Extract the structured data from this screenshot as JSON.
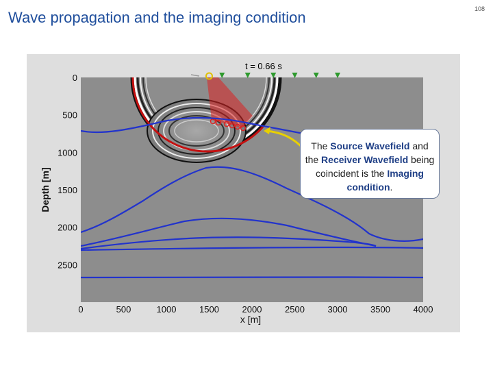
{
  "slide": {
    "title": "Wave propagation and the imaging condition",
    "page_number": "108"
  },
  "figure": {
    "time_label": "t = 0.66 s",
    "y_axis_label": "Depth [m]",
    "x_axis_label": "x [m]",
    "x_ticks": [
      "0",
      "500",
      "1000",
      "1500",
      "2000",
      "2500",
      "3000",
      "3500",
      "4000"
    ],
    "y_ticks": [
      "0",
      "500",
      "1000",
      "1500",
      "2000",
      "2500"
    ],
    "x_range": [
      0,
      4000
    ],
    "y_range": [
      0,
      3000
    ],
    "source_x": 1500,
    "receiver_x": [
      1650,
      1950,
      2250,
      2500,
      2750,
      3000
    ],
    "colors": {
      "background_gray": "#8d8d8d",
      "layer_lines": "#2233cc",
      "wavefront": "#cc1111",
      "receiver_marker": "#2e9a2e",
      "source_marker": "#e0c000"
    }
  },
  "callout": {
    "prefix": "The ",
    "term1": "Source Wavefield",
    "mid1": " and the ",
    "term2": "Receiver Wavefield",
    "mid2": " being coincident is the ",
    "term3": "Imaging condition",
    "suffix": "."
  }
}
